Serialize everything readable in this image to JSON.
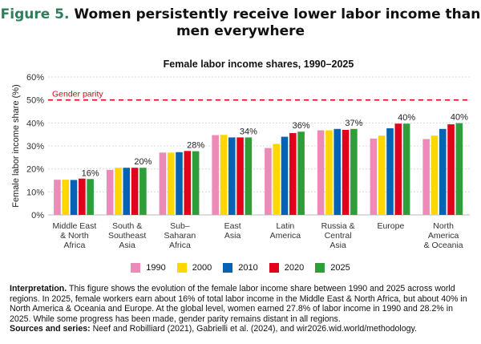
{
  "figure": {
    "number": "Figure 5.",
    "title": "Women persistently receive lower labor income than men everywhere"
  },
  "chart_data": {
    "type": "bar",
    "title": "Female labor income shares, 1990–2025",
    "ylabel": "Female labor income share (%)",
    "xlabel": "",
    "ylim": [
      0,
      60
    ],
    "yticks": [
      "0%",
      "10%",
      "20%",
      "30%",
      "40%",
      "50%",
      "60%"
    ],
    "grid": true,
    "legend_position": "bottom",
    "reference_line": {
      "value": 50,
      "label": "Gender parity",
      "color": "#e2001a"
    },
    "categories": [
      [
        "Middle East",
        "& North",
        "Africa"
      ],
      [
        "South &",
        "Southeast",
        "Asia"
      ],
      [
        "Sub–",
        "Saharan",
        "Africa"
      ],
      [
        "East",
        "Asia"
      ],
      [
        "Latin",
        "America"
      ],
      [
        "Russia &",
        "Central",
        "Asia"
      ],
      [
        "Europe"
      ],
      [
        "North",
        "America",
        "& Oceania"
      ]
    ],
    "series": [
      {
        "name": "1990",
        "color": "#ee8ab8",
        "values": [
          15.3,
          19.6,
          27.1,
          34.7,
          29.1,
          36.8,
          33.2,
          33.0
        ]
      },
      {
        "name": "2000",
        "color": "#ffd700",
        "values": [
          15.3,
          20.5,
          27.1,
          34.8,
          30.9,
          36.8,
          34.5,
          34.5
        ]
      },
      {
        "name": "2010",
        "color": "#0563b5",
        "values": [
          15.2,
          20.5,
          27.3,
          33.7,
          34.0,
          37.4,
          37.7,
          37.4
        ]
      },
      {
        "name": "2020",
        "color": "#e2001a",
        "values": [
          15.8,
          20.5,
          27.8,
          33.7,
          35.6,
          37.0,
          39.7,
          39.4
        ]
      },
      {
        "name": "2025",
        "color": "#2e9e3a",
        "values": [
          15.6,
          20.5,
          27.7,
          33.7,
          36.2,
          37.4,
          39.7,
          39.9
        ]
      }
    ],
    "data_labels": [
      "16%",
      "20%",
      "28%",
      "34%",
      "36%",
      "37%",
      "40%",
      "40%"
    ]
  },
  "notes": {
    "interpretation_label": "Interpretation.",
    "interpretation_text": " This figure shows the evolution of the female labor income share between 1990 and 2025 across world regions. In 2025, female workers earn about 16% of total labor income in the Middle East & North Africa, but about 40% in North America & Oceania and Europe. At the global level, women earned 27.8% of labor income in 1990 and 28.2% in 2025. While some progress has been made, gender parity remains distant in all regions.",
    "sources_label": "Sources and series:",
    "sources_text": " Neef and Robilliard (2021), Gabrielli et al. (2024), and wir2026.wid.world/methodology."
  }
}
